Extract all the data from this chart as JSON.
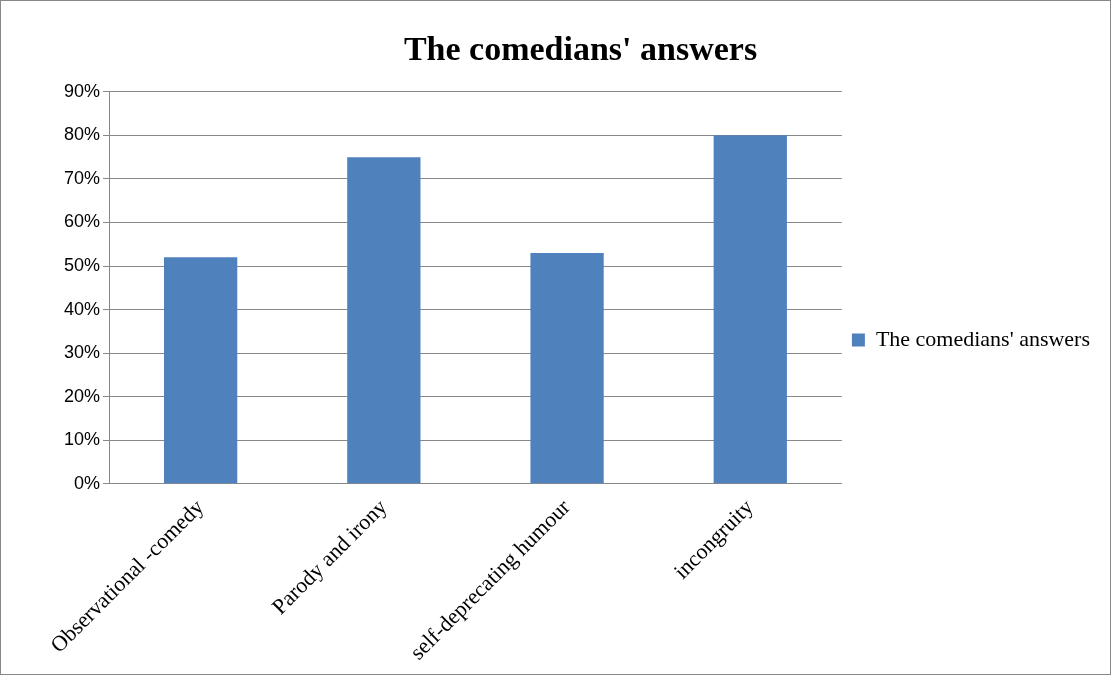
{
  "chart_data": {
    "type": "bar",
    "title": "The comedians' answers",
    "categories": [
      "Observational -comedy",
      "Parody and irony",
      "self-deprecating humour",
      "incongruity"
    ],
    "series": [
      {
        "name": "The comedians' answers",
        "color": "#4f81bd",
        "values": [
          52,
          75,
          53,
          80
        ]
      }
    ],
    "ylim": [
      0,
      90
    ],
    "yticks": [
      {
        "value": 0,
        "label": "0%"
      },
      {
        "value": 10,
        "label": "10%"
      },
      {
        "value": 20,
        "label": "20%"
      },
      {
        "value": 30,
        "label": "30%"
      },
      {
        "value": 40,
        "label": "40%"
      },
      {
        "value": 50,
        "label": "50%"
      },
      {
        "value": 60,
        "label": "60%"
      },
      {
        "value": 70,
        "label": "70%"
      },
      {
        "value": 80,
        "label": "80%"
      },
      {
        "value": 90,
        "label": "90%"
      }
    ],
    "grid": "y",
    "legend": "right"
  }
}
